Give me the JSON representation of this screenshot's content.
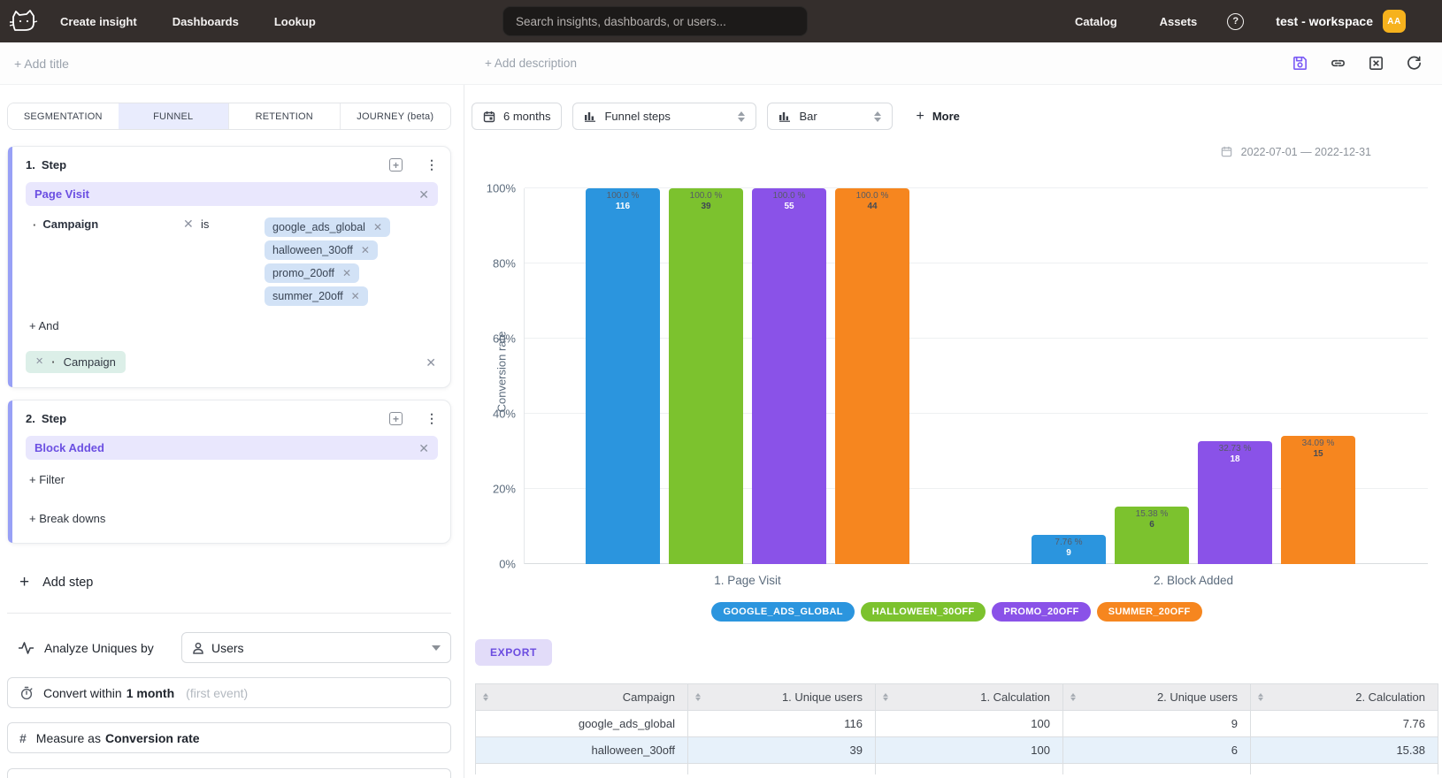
{
  "nav": {
    "brand": "cat-logo",
    "items": [
      {
        "label": "Create insight"
      },
      {
        "label": "Dashboards"
      },
      {
        "label": "Lookup"
      }
    ],
    "search_placeholder": "Search insights, dashboards, or users...",
    "right_items": [
      {
        "label": "Catalog"
      },
      {
        "label": "Assets"
      }
    ],
    "help_glyph": "?",
    "workspace": "test - workspace",
    "avatar_initials": "AA",
    "avatar_color": "#f6b21d"
  },
  "titlebar": {
    "add_title": "+ Add title",
    "add_description": "+ Add description",
    "icons": [
      "save-icon",
      "link-icon",
      "close-square-icon",
      "refresh-icon"
    ],
    "save_icon_color": "#7a5af5"
  },
  "left_panel": {
    "tabs": [
      "SEGMENTATION",
      "FUNNEL",
      "RETENTION",
      "JOURNEY (beta)"
    ],
    "active_tab": "FUNNEL",
    "step1": {
      "num": "1.",
      "title": "Step",
      "event": "Page Visit",
      "filter": {
        "property": "Campaign",
        "operator": "is",
        "values": [
          "google_ads_global",
          "halloween_30off",
          "promo_20off",
          "summer_20off"
        ]
      },
      "and_label": "+ And",
      "breakdown_chip": "Campaign"
    },
    "step2": {
      "num": "2.",
      "title": "Step",
      "event": "Block Added",
      "add_filter": "+ Filter",
      "add_breakdown": "+ Break downs"
    },
    "add_step": "Add step",
    "analyze": {
      "label": "Analyze Uniques by",
      "value": "Users"
    },
    "convert": {
      "prefix": "Convert within",
      "value": "1 month",
      "hint": "(first event)"
    },
    "measure": {
      "prefix": "Measure as",
      "value": "Conversion rate"
    }
  },
  "toolbar": {
    "range": "6 months",
    "view": "Funnel steps",
    "chart_type": "Bar",
    "more": "More",
    "date_range": "2022-07-01 — 2022-12-31"
  },
  "chart_data": {
    "type": "bar",
    "title": "",
    "ylabel": "Conversion rate",
    "ylim": [
      0,
      100
    ],
    "yticks": [
      "0%",
      "20%",
      "40%",
      "60%",
      "80%",
      "100%"
    ],
    "grid": true,
    "legend_position": "bottom-center",
    "categories": [
      "1. Page Visit",
      "2. Block Added"
    ],
    "series": [
      {
        "name": "GOOGLE_ADS_GLOBAL",
        "color": "#2b95de",
        "count_color": "#ffffff",
        "points": [
          {
            "pct": 100.0,
            "pct_label": "100.0 %",
            "count": "116"
          },
          {
            "pct": 7.76,
            "pct_label": "7.76 %",
            "count": "9"
          }
        ]
      },
      {
        "name": "HALLOWEEN_30OFF",
        "color": "#7cc22e",
        "count_color": "#3f4854",
        "points": [
          {
            "pct": 100.0,
            "pct_label": "100.0 %",
            "count": "39"
          },
          {
            "pct": 15.38,
            "pct_label": "15.38 %",
            "count": "6"
          }
        ]
      },
      {
        "name": "PROMO_20OFF",
        "color": "#8a52e8",
        "count_color": "#ffffff",
        "points": [
          {
            "pct": 100.0,
            "pct_label": "100.0 %",
            "count": "55"
          },
          {
            "pct": 32.73,
            "pct_label": "32.73 %",
            "count": "18"
          }
        ]
      },
      {
        "name": "SUMMER_20OFF",
        "color": "#f6861f",
        "count_color": "#474c55",
        "points": [
          {
            "pct": 100.0,
            "pct_label": "100.0 %",
            "count": "44"
          },
          {
            "pct": 34.09,
            "pct_label": "34.09 %",
            "count": "15"
          }
        ]
      }
    ]
  },
  "export_label": "EXPORT",
  "table": {
    "columns": [
      "Campaign",
      "1. Unique users",
      "1. Calculation",
      "2. Unique users",
      "2. Calculation"
    ],
    "rows": [
      [
        "google_ads_global",
        "116",
        "100",
        "9",
        "7.76"
      ],
      [
        "halloween_30off",
        "39",
        "100",
        "6",
        "15.38"
      ]
    ]
  }
}
